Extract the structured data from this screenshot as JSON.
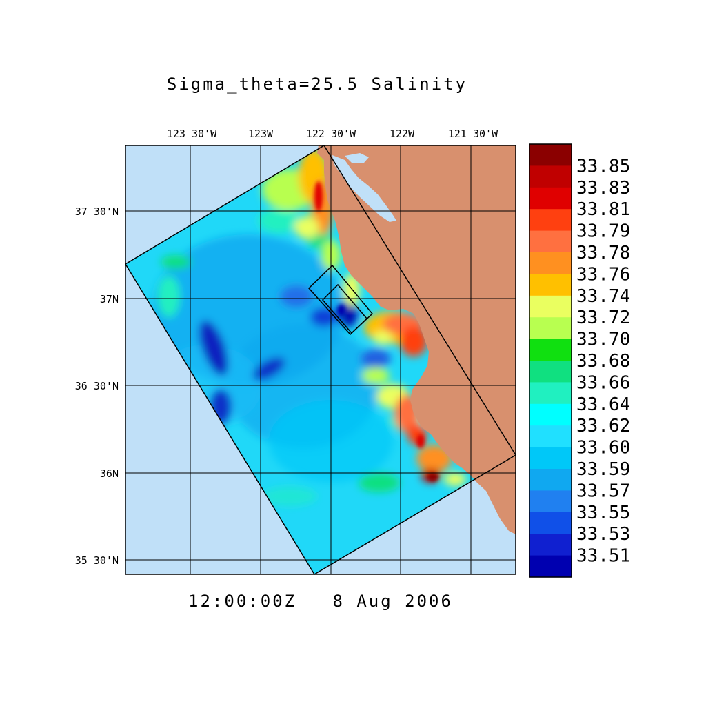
{
  "title": "Sigma_theta=25.5 Salinity",
  "timestamp": "12:00:00Z   8 Aug 2006",
  "longitude_labels": [
    {
      "lon": -123.5,
      "label": "123 30'W"
    },
    {
      "lon": -123.0,
      "label": "123W"
    },
    {
      "lon": -122.5,
      "label": "122 30'W"
    },
    {
      "lon": -122.0,
      "label": "122W"
    },
    {
      "lon": -121.5,
      "label": "121 30'W"
    }
  ],
  "latitude_labels": [
    {
      "lat": 37.5,
      "label": "37 30'N"
    },
    {
      "lat": 37.0,
      "label": "37N"
    },
    {
      "lat": 36.5,
      "label": "36 30'N"
    },
    {
      "lat": 36.0,
      "label": "36N"
    },
    {
      "lat": 35.5,
      "label": "35 30'N"
    }
  ],
  "colorbar": {
    "labels": [
      "33.85",
      "33.83",
      "33.81",
      "33.79",
      "33.78",
      "33.76",
      "33.74",
      "33.72",
      "33.70",
      "33.68",
      "33.66",
      "33.64",
      "33.62",
      "33.60",
      "33.59",
      "33.57",
      "33.55",
      "33.53",
      "33.51"
    ],
    "colors": [
      "#8b0000",
      "#c00000",
      "#e00000",
      "#ff4010",
      "#ff7040",
      "#ff9020",
      "#ffc000",
      "#eaff60",
      "#b8ff50",
      "#10e010",
      "#10e080",
      "#20f0c0",
      "#00ffff",
      "#20e0ff",
      "#00c8f8",
      "#10a8f0",
      "#2080f0",
      "#1050e8",
      "#1020d0",
      "#0000b0"
    ]
  },
  "map_colors": {
    "land": "#d8906e",
    "ocean_outside": "#c0e0f8",
    "domain_base": "#20d8f8"
  },
  "chart_data": {
    "type": "heatmap",
    "variable": "Salinity",
    "title": "Sigma_theta=25.5 Salinity",
    "lon_range": [
      -123.97,
      -121.32
    ],
    "lat_range": [
      35.4,
      37.85
    ],
    "value_range": [
      33.51,
      33.85
    ]
  }
}
